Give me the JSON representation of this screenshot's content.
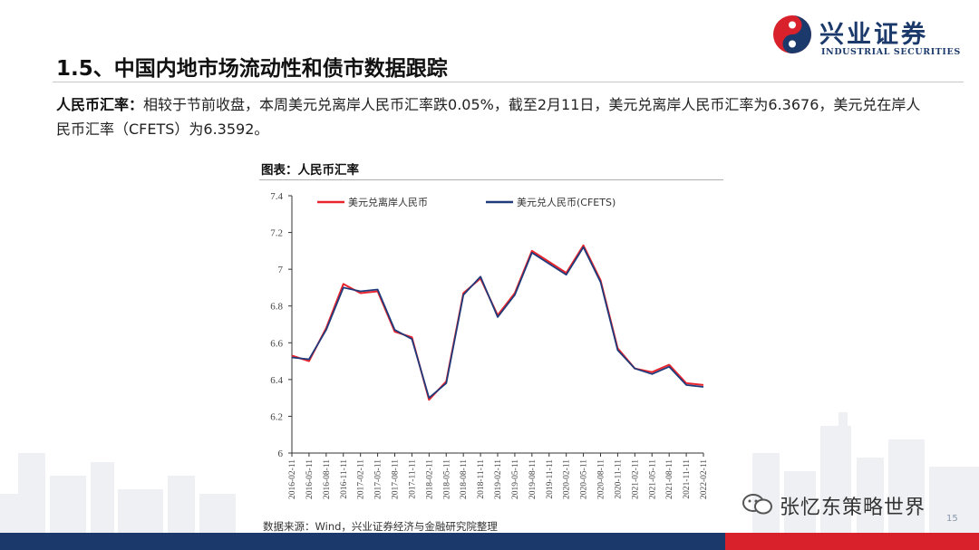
{
  "header": {
    "logo_name": "兴业证券",
    "logo_sub": "INDUSTRIAL SECURITIES",
    "title": "1.5、中国内地市场流动性和债市数据跟踪"
  },
  "paragraph": {
    "label": "人民币汇率：",
    "text": "相较于节前收盘，本周美元兑离岸人民币汇率跌0.05%，截至2月11日，美元兑离岸人民币汇率为6.3676，美元兑在岸人民币汇率（CFETS）为6.3592。"
  },
  "chart_title": "图表：人民币汇率",
  "source": "数据来源：Wind，兴业证券经济与金融研究院整理",
  "page_number": "15",
  "watermark": "张忆东策略世界",
  "colors": {
    "offshore": "#e8242c",
    "onshore": "#1f3b7c",
    "navy": "#1b3a6b",
    "red": "#d8212b"
  },
  "chart_data": {
    "type": "line",
    "ylim": [
      6,
      7.4
    ],
    "yticks": [
      "6",
      "6.2",
      "6.4",
      "6.6",
      "6.8",
      "7",
      "7.2",
      "7.4"
    ],
    "legend_position": "top-left",
    "x": [
      "2016-02-11",
      "2016-05-11",
      "2016-08-11",
      "2016-11-11",
      "2017-02-11",
      "2017-05-11",
      "2017-08-11",
      "2017-11-11",
      "2018-02-11",
      "2018-05-11",
      "2018-08-11",
      "2018-11-11",
      "2019-02-11",
      "2019-05-11",
      "2019-08-11",
      "2019-11-11",
      "2020-02-11",
      "2020-05-11",
      "2020-08-11",
      "2020-11-11",
      "2021-02-11",
      "2021-05-11",
      "2021-08-11",
      "2021-11-11",
      "2022-02-11"
    ],
    "xticks": [
      "2016-02-11",
      "2016-05-11",
      "2016-08-11",
      "2016-11-11",
      "2017-02-11",
      "2017-05-11",
      "2017-08-11",
      "2017-11-11",
      "2018-02-11",
      "2018-05-11",
      "2018-08-11",
      "2018-11-11",
      "2019-02-11",
      "2019-05-11",
      "2019-08-11",
      "2019-11-11",
      "2020-02-11",
      "2020-05-11",
      "2020-08-11",
      "2020-11-11",
      "2021-02-11",
      "2021-05-11",
      "2021-08-11",
      "2021-11-11",
      "2022-02-11"
    ],
    "series": [
      {
        "name": "美元兑离岸人民币",
        "values": [
          6.53,
          6.5,
          6.68,
          6.92,
          6.87,
          6.88,
          6.66,
          6.63,
          6.29,
          6.39,
          6.87,
          6.95,
          6.75,
          6.87,
          7.1,
          7.04,
          6.98,
          7.13,
          6.94,
          6.57,
          6.46,
          6.44,
          6.48,
          6.38,
          6.37
        ]
      },
      {
        "name": "美元兑人民币(CFETS)",
        "values": [
          6.52,
          6.51,
          6.67,
          6.9,
          6.88,
          6.89,
          6.67,
          6.62,
          6.3,
          6.38,
          6.86,
          6.96,
          6.74,
          6.86,
          7.09,
          7.03,
          6.97,
          7.12,
          6.93,
          6.56,
          6.46,
          6.43,
          6.47,
          6.37,
          6.36
        ]
      }
    ]
  }
}
